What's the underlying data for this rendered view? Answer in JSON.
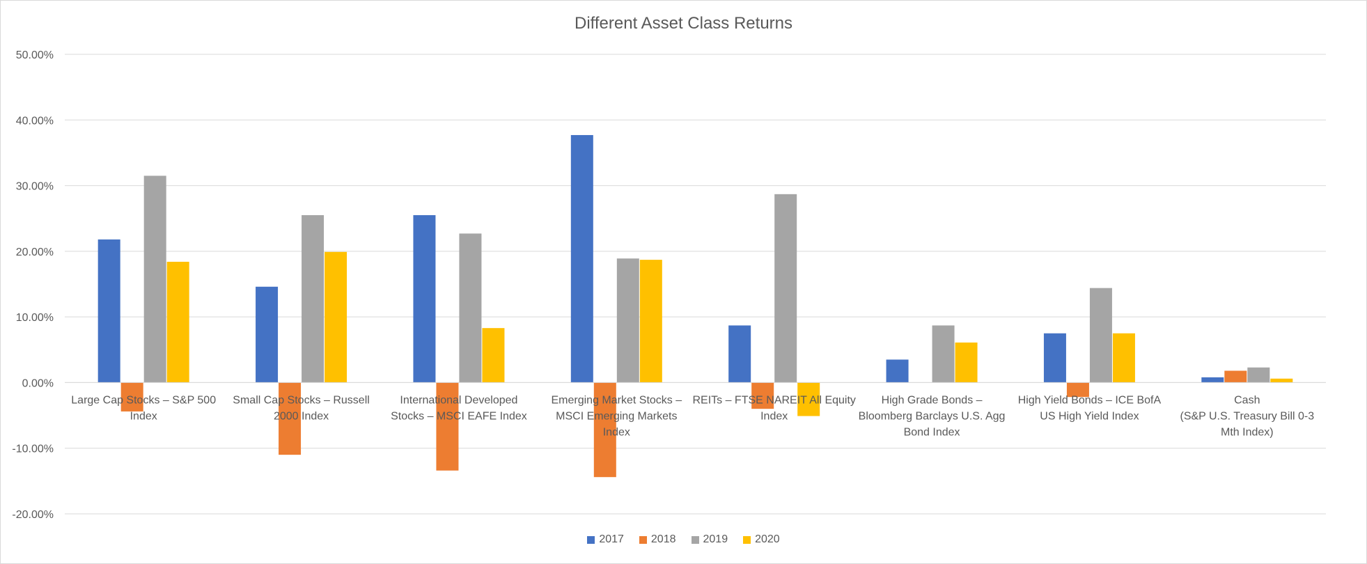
{
  "chart_data": {
    "type": "bar",
    "title": "Different Asset Class Returns",
    "xlabel": "",
    "ylabel": "",
    "ylim": [
      -0.2,
      0.5
    ],
    "yticks": [
      "50.00%",
      "40.00%",
      "30.00%",
      "20.00%",
      "10.00%",
      "0.00%",
      "-10.00%",
      "-20.00%"
    ],
    "grid": true,
    "legend_position": "bottom",
    "categories": [
      [
        "Large Cap Stocks – S&P 500",
        "Index"
      ],
      [
        "Small Cap Stocks – Russell",
        "2000 Index"
      ],
      [
        "International Developed",
        "Stocks – MSCI EAFE Index"
      ],
      [
        "Emerging Market Stocks –",
        "MSCI Emerging Markets",
        "Index"
      ],
      [
        "REITs – FTSE NAREIT All Equity",
        "Index"
      ],
      [
        "High Grade Bonds –",
        "Bloomberg Barclays U.S. Agg",
        "Bond Index"
      ],
      [
        "High Yield Bonds – ICE BofA",
        "US High Yield Index"
      ],
      [
        "Cash",
        "(S&P U.S. Treasury Bill 0-3",
        "Mth Index)"
      ]
    ],
    "series": [
      {
        "name": "2017",
        "color": "#4472c4",
        "values": [
          0.218,
          0.146,
          0.255,
          0.377,
          0.087,
          0.035,
          0.075,
          0.008
        ]
      },
      {
        "name": "2018",
        "color": "#ed7d31",
        "values": [
          -0.044,
          -0.11,
          -0.134,
          -0.144,
          -0.04,
          0.0,
          -0.022,
          0.018
        ]
      },
      {
        "name": "2019",
        "color": "#a5a5a5",
        "values": [
          0.315,
          0.255,
          0.227,
          0.189,
          0.287,
          0.087,
          0.144,
          0.023
        ]
      },
      {
        "name": "2020",
        "color": "#ffc000",
        "values": [
          0.184,
          0.199,
          0.083,
          0.187,
          -0.051,
          0.061,
          0.075,
          0.006
        ]
      }
    ]
  }
}
